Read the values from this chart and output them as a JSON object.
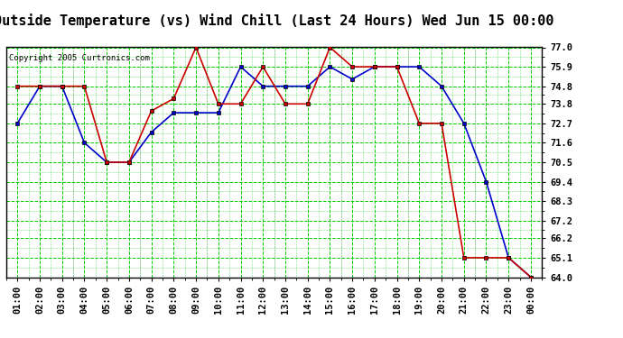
{
  "title": "Outside Temperature (vs) Wind Chill (Last 24 Hours) Wed Jun 15 00:00",
  "copyright": "Copyright 2005 Curtronics.com",
  "x_labels": [
    "01:00",
    "02:00",
    "03:00",
    "04:00",
    "05:00",
    "06:00",
    "07:00",
    "08:00",
    "09:00",
    "10:00",
    "11:00",
    "12:00",
    "13:00",
    "14:00",
    "15:00",
    "16:00",
    "17:00",
    "18:00",
    "19:00",
    "20:00",
    "21:00",
    "22:00",
    "23:00",
    "00:00"
  ],
  "ylim": [
    64.0,
    77.0
  ],
  "yticks": [
    64.0,
    65.1,
    66.2,
    67.2,
    68.3,
    69.4,
    70.5,
    71.6,
    72.7,
    73.8,
    74.8,
    75.9,
    77.0
  ],
  "temp_blue": [
    72.7,
    74.8,
    74.8,
    71.6,
    70.5,
    70.5,
    72.2,
    73.3,
    73.3,
    73.3,
    75.9,
    74.8,
    74.8,
    74.8,
    75.9,
    75.2,
    75.9,
    75.9,
    75.9,
    74.8,
    72.7,
    69.4,
    65.1,
    64.0
  ],
  "wind_red": [
    74.8,
    74.8,
    74.8,
    74.8,
    70.5,
    70.5,
    73.4,
    74.1,
    77.0,
    73.8,
    73.8,
    75.9,
    73.8,
    73.8,
    77.0,
    75.9,
    75.9,
    75.9,
    72.7,
    72.7,
    65.1,
    65.1,
    65.1,
    64.0
  ],
  "blue_color": "#0000cc",
  "red_color": "#cc0000",
  "bg_color": "#ffffff",
  "grid_major_color": "#00cc00",
  "title_fontsize": 11,
  "tick_fontsize": 7.5,
  "copyright_fontsize": 6.5
}
